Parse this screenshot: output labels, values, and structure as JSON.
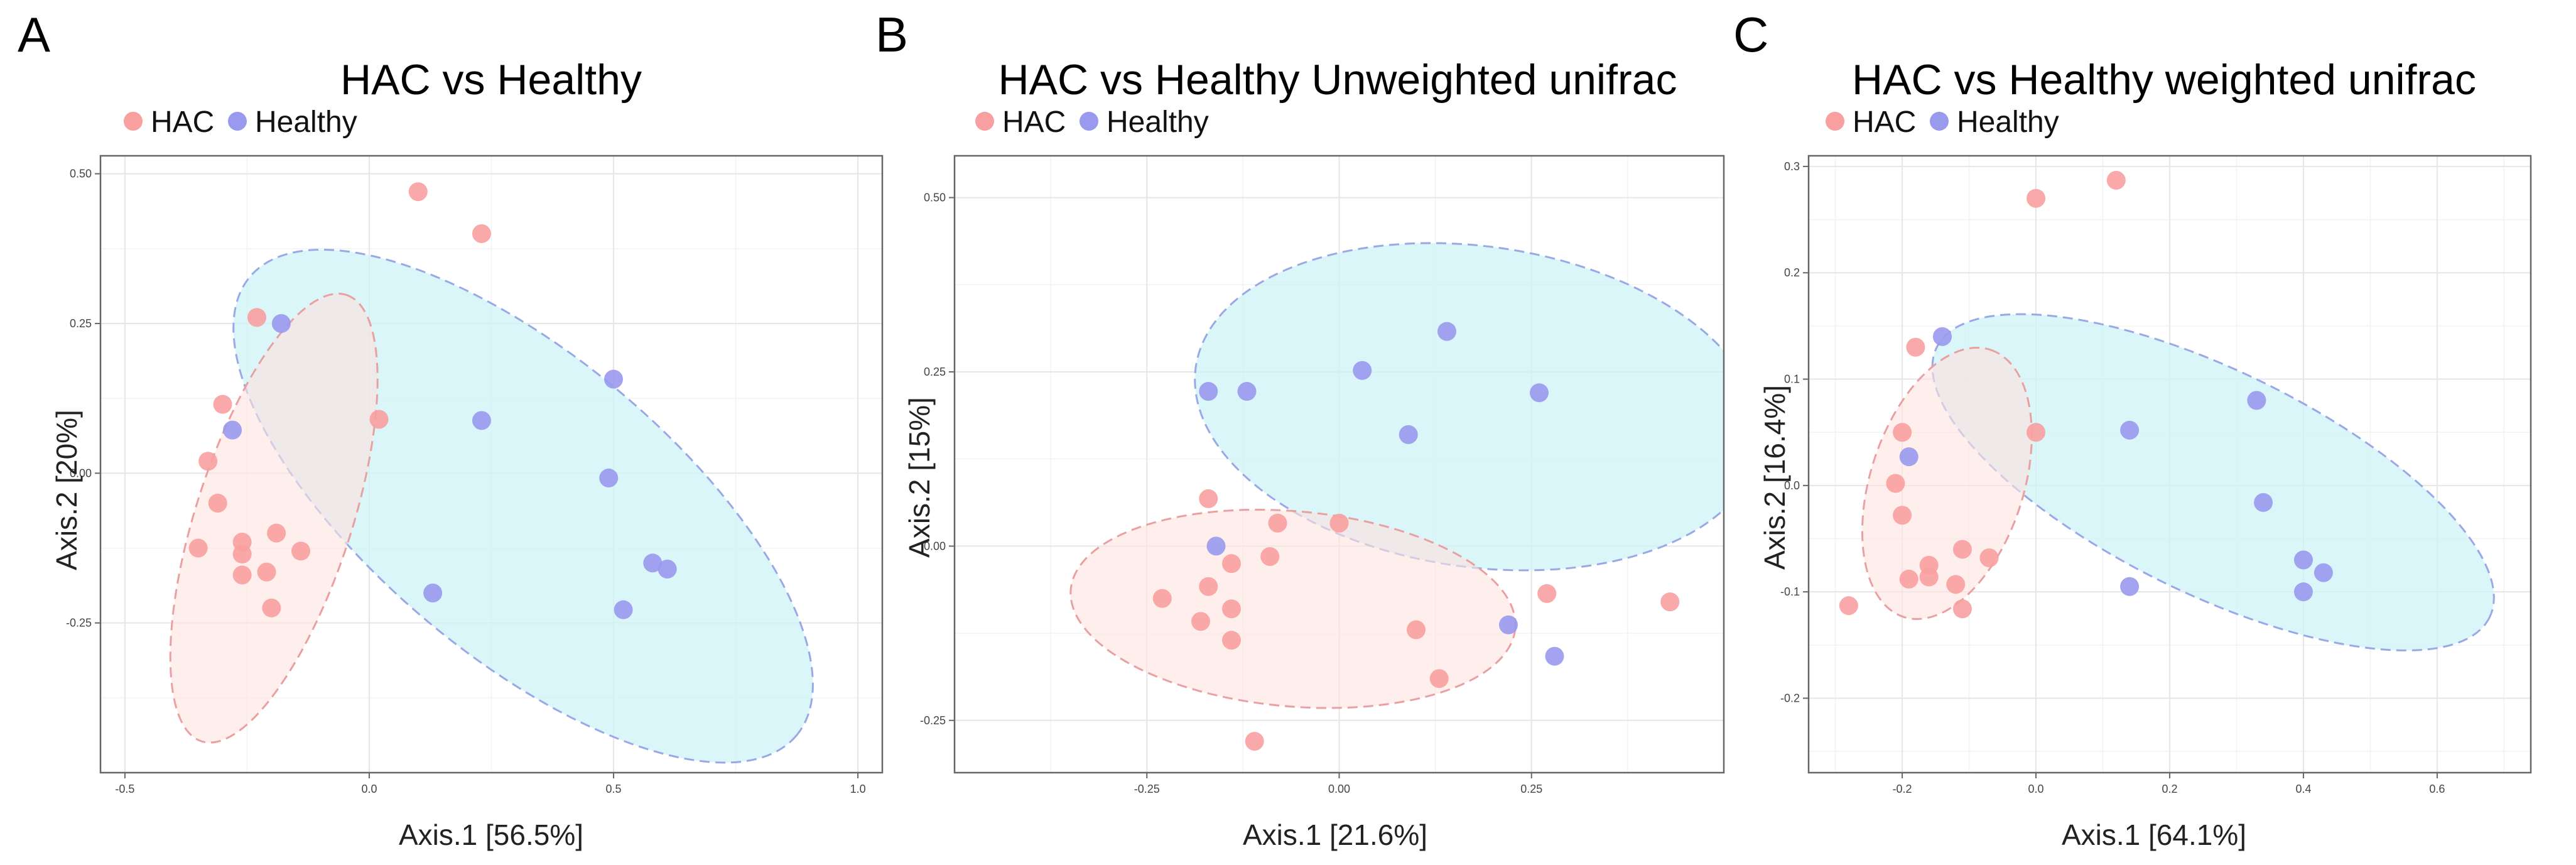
{
  "colors": {
    "hac_point": "#f8a0a0",
    "hac_ellipse_fill": "#fde2e0",
    "hac_ellipse_stroke": "#e9a0a0",
    "healthy_point": "#9999ee",
    "healthy_ellipse_fill": "#cdf3f5",
    "healthy_ellipse_stroke": "#9aa8e6"
  },
  "chart_data": [
    {
      "panel_letter": "A",
      "type": "scatter",
      "title": "HAC vs Healthy",
      "legend": [
        "HAC",
        "Healthy"
      ],
      "xlabel": "Axis.1   [56.5%]",
      "ylabel": "Axis.2   [20%]",
      "xlim": [
        -0.55,
        1.05
      ],
      "ylim": [
        -0.5,
        0.53
      ],
      "xticks": [
        -0.5,
        0.0,
        0.5,
        1.0
      ],
      "xtick_labels": [
        "-0.5",
        "0.0",
        "0.5",
        "1.0"
      ],
      "yticks": [
        -0.25,
        0.0,
        0.25,
        0.5
      ],
      "ytick_labels": [
        "-0.25",
        "0.00",
        "0.25",
        "0.50"
      ],
      "grid": true,
      "series": [
        {
          "name": "HAC",
          "points": [
            [
              0.1,
              0.47
            ],
            [
              0.23,
              0.4
            ],
            [
              -0.23,
              0.26
            ],
            [
              -0.3,
              0.115
            ],
            [
              0.02,
              0.09
            ],
            [
              -0.33,
              0.02
            ],
            [
              -0.31,
              -0.05
            ],
            [
              -0.19,
              -0.1
            ],
            [
              -0.26,
              -0.115
            ],
            [
              -0.35,
              -0.125
            ],
            [
              -0.14,
              -0.13
            ],
            [
              -0.26,
              -0.135
            ],
            [
              -0.21,
              -0.165
            ],
            [
              -0.26,
              -0.17
            ],
            [
              -0.2,
              -0.225
            ]
          ]
        },
        {
          "name": "Healthy",
          "points": [
            [
              -0.18,
              0.25
            ],
            [
              -0.28,
              0.072
            ],
            [
              0.5,
              0.157
            ],
            [
              0.23,
              0.088
            ],
            [
              0.49,
              -0.008
            ],
            [
              0.58,
              -0.15
            ],
            [
              0.61,
              -0.16
            ],
            [
              0.13,
              -0.2
            ],
            [
              0.52,
              -0.228
            ]
          ]
        }
      ],
      "ellipses": [
        {
          "group": "Healthy",
          "cx": 0.315,
          "cy": -0.055,
          "rx": 0.73,
          "ry": 0.25,
          "angle_deg": -40
        },
        {
          "group": "HAC",
          "cx": -0.195,
          "cy": -0.075,
          "rx": 0.48,
          "ry": 0.13,
          "angle_deg": 72
        }
      ]
    },
    {
      "panel_letter": "B",
      "type": "scatter",
      "title": "HAC vs Healthy Unweighted unifrac",
      "legend": [
        "HAC",
        "Healthy"
      ],
      "xlabel": "Axis.1   [21.6%]",
      "ylabel": "Axis.2   [15%]",
      "xlim": [
        -0.5,
        0.5
      ],
      "ylim": [
        -0.325,
        0.56
      ],
      "xticks": [
        -0.25,
        0.0,
        0.25
      ],
      "xtick_labels": [
        "-0.25",
        "0.00",
        "0.25"
      ],
      "yticks": [
        -0.25,
        0.0,
        0.25,
        0.5
      ],
      "ytick_labels": [
        "-0.25",
        "0.00",
        "0.25",
        "0.50"
      ],
      "grid": true,
      "series": [
        {
          "name": "HAC",
          "points": [
            [
              -0.17,
              0.068
            ],
            [
              -0.08,
              0.033
            ],
            [
              0.0,
              0.033
            ],
            [
              -0.14,
              -0.025
            ],
            [
              -0.09,
              -0.015
            ],
            [
              -0.17,
              -0.058
            ],
            [
              -0.23,
              -0.075
            ],
            [
              -0.14,
              -0.09
            ],
            [
              -0.18,
              -0.108
            ],
            [
              -0.14,
              -0.135
            ],
            [
              0.1,
              -0.12
            ],
            [
              0.13,
              -0.19
            ],
            [
              0.27,
              -0.068
            ],
            [
              0.43,
              -0.08
            ],
            [
              -0.11,
              -0.28
            ]
          ]
        },
        {
          "name": "Healthy",
          "points": [
            [
              0.14,
              0.308
            ],
            [
              0.03,
              0.252
            ],
            [
              -0.17,
              0.222
            ],
            [
              -0.12,
              0.222
            ],
            [
              0.26,
              0.22
            ],
            [
              0.09,
              0.16
            ],
            [
              -0.16,
              0.0
            ],
            [
              0.22,
              -0.113
            ],
            [
              0.28,
              -0.158
            ]
          ]
        }
      ],
      "ellipses": [
        {
          "group": "Healthy",
          "cx": 0.18,
          "cy": 0.2,
          "rx": 0.37,
          "ry": 0.23,
          "angle_deg": -8
        },
        {
          "group": "HAC",
          "cx": -0.06,
          "cy": -0.09,
          "rx": 0.29,
          "ry": 0.14,
          "angle_deg": -5
        }
      ]
    },
    {
      "panel_letter": "C",
      "type": "scatter",
      "title": "HAC vs Healthy weighted unifrac",
      "legend": [
        "HAC",
        "Healthy"
      ],
      "xlabel": "Axis.1   [64.1%]",
      "ylabel": "Axis.2   [16.4%]",
      "xlim": [
        -0.34,
        0.74
      ],
      "ylim": [
        -0.27,
        0.31
      ],
      "xticks": [
        -0.2,
        0.0,
        0.2,
        0.4,
        0.6
      ],
      "xtick_labels": [
        "-0.2",
        "0.0",
        "0.2",
        "0.4",
        "0.6"
      ],
      "yticks": [
        -0.2,
        -0.1,
        0.0,
        0.1,
        0.2,
        0.3
      ],
      "ytick_labels": [
        "-0.2",
        "-0.1",
        "0.0",
        "0.1",
        "0.2",
        "0.3"
      ],
      "grid": true,
      "series": [
        {
          "name": "HAC",
          "points": [
            [
              0.12,
              0.287
            ],
            [
              0.0,
              0.27
            ],
            [
              -0.18,
              0.13
            ],
            [
              -0.2,
              0.05
            ],
            [
              0.0,
              0.05
            ],
            [
              -0.21,
              0.002
            ],
            [
              -0.2,
              -0.028
            ],
            [
              -0.11,
              -0.06
            ],
            [
              -0.07,
              -0.068
            ],
            [
              -0.16,
              -0.075
            ],
            [
              -0.19,
              -0.088
            ],
            [
              -0.16,
              -0.086
            ],
            [
              -0.12,
              -0.093
            ],
            [
              -0.11,
              -0.116
            ],
            [
              -0.28,
              -0.113
            ]
          ]
        },
        {
          "name": "Healthy",
          "points": [
            [
              -0.14,
              0.14
            ],
            [
              -0.19,
              0.027
            ],
            [
              0.33,
              0.08
            ],
            [
              0.14,
              0.052
            ],
            [
              0.34,
              -0.016
            ],
            [
              0.4,
              -0.07
            ],
            [
              0.43,
              -0.082
            ],
            [
              0.14,
              -0.095
            ],
            [
              0.4,
              -0.1
            ]
          ]
        }
      ],
      "ellipses": [
        {
          "group": "Healthy",
          "cx": 0.265,
          "cy": 0.003,
          "rx": 0.46,
          "ry": 0.105,
          "angle_deg": -26
        },
        {
          "group": "HAC",
          "cx": -0.133,
          "cy": 0.002,
          "rx": 0.21,
          "ry": 0.072,
          "angle_deg": 72
        }
      ]
    }
  ]
}
